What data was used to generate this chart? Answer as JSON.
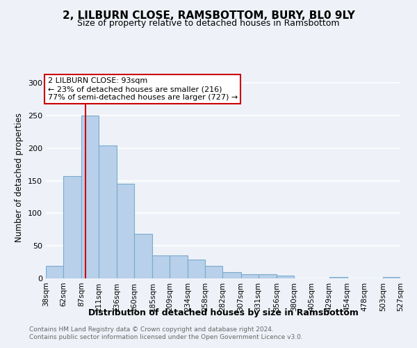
{
  "title": "2, LILBURN CLOSE, RAMSBOTTOM, BURY, BL0 9LY",
  "subtitle": "Size of property relative to detached houses in Ramsbottom",
  "xlabel": "Distribution of detached houses by size in Ramsbottom",
  "ylabel": "Number of detached properties",
  "bar_color": "#b8d0ea",
  "bar_edge_color": "#7aabcc",
  "bin_edges": [
    38,
    62,
    87,
    111,
    136,
    160,
    185,
    209,
    234,
    258,
    282,
    307,
    331,
    356,
    380,
    405,
    429,
    454,
    478,
    503,
    527
  ],
  "bin_labels": [
    "38sqm",
    "62sqm",
    "87sqm",
    "111sqm",
    "136sqm",
    "160sqm",
    "185sqm",
    "209sqm",
    "234sqm",
    "258sqm",
    "282sqm",
    "307sqm",
    "331sqm",
    "356sqm",
    "380sqm",
    "405sqm",
    "429sqm",
    "454sqm",
    "478sqm",
    "503sqm",
    "527sqm"
  ],
  "bar_heights": [
    19,
    157,
    250,
    204,
    145,
    68,
    35,
    35,
    29,
    19,
    10,
    6,
    6,
    4,
    0,
    0,
    2,
    0,
    0,
    2
  ],
  "vline_x": 93,
  "vline_color": "#cc0000",
  "ylim": [
    0,
    310
  ],
  "yticks": [
    0,
    50,
    100,
    150,
    200,
    250,
    300
  ],
  "annotation_title": "2 LILBURN CLOSE: 93sqm",
  "annotation_line1": "← 23% of detached houses are smaller (216)",
  "annotation_line2": "77% of semi-detached houses are larger (727) →",
  "annotation_box_color": "#ffffff",
  "annotation_box_edge_color": "#cc0000",
  "footer1": "Contains HM Land Registry data © Crown copyright and database right 2024.",
  "footer2": "Contains public sector information licensed under the Open Government Licence v3.0.",
  "background_color": "#eef2f8",
  "grid_color": "#ffffff",
  "title_fontsize": 11,
  "subtitle_fontsize": 9,
  "xlabel_fontsize": 9,
  "ylabel_fontsize": 8.5
}
